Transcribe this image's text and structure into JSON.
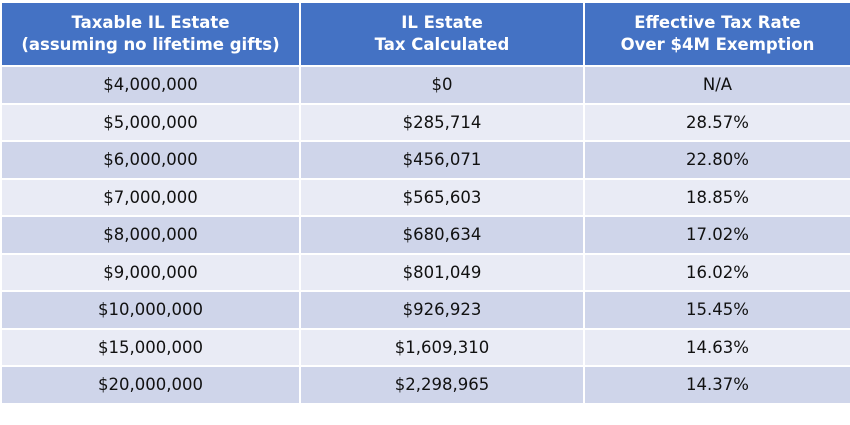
{
  "colors": {
    "header": "#4472C4",
    "row_dark": "#CFD5EA",
    "row_light": "#E9EBF5"
  },
  "headers": [
    {
      "line1": "Taxable IL Estate",
      "line2": "(assuming no lifetime gifts)"
    },
    {
      "line1": "IL Estate",
      "line2": "Tax Calculated"
    },
    {
      "line1": "Effective Tax Rate",
      "line2": "Over $4M Exemption"
    }
  ],
  "rows": [
    [
      "$4,000,000",
      "$0",
      "N/A"
    ],
    [
      "$5,000,000",
      "$285,714",
      "28.57%"
    ],
    [
      "$6,000,000",
      "$456,071",
      "22.80%"
    ],
    [
      "$7,000,000",
      "$565,603",
      "18.85%"
    ],
    [
      "$8,000,000",
      "$680,634",
      "17.02%"
    ],
    [
      "$9,000,000",
      "$801,049",
      "16.02%"
    ],
    [
      "$10,000,000",
      "$926,923",
      "15.45%"
    ],
    [
      "$15,000,000",
      "$1,609,310",
      "14.63%"
    ],
    [
      "$20,000,000",
      "$2,298,965",
      "14.37%"
    ]
  ]
}
